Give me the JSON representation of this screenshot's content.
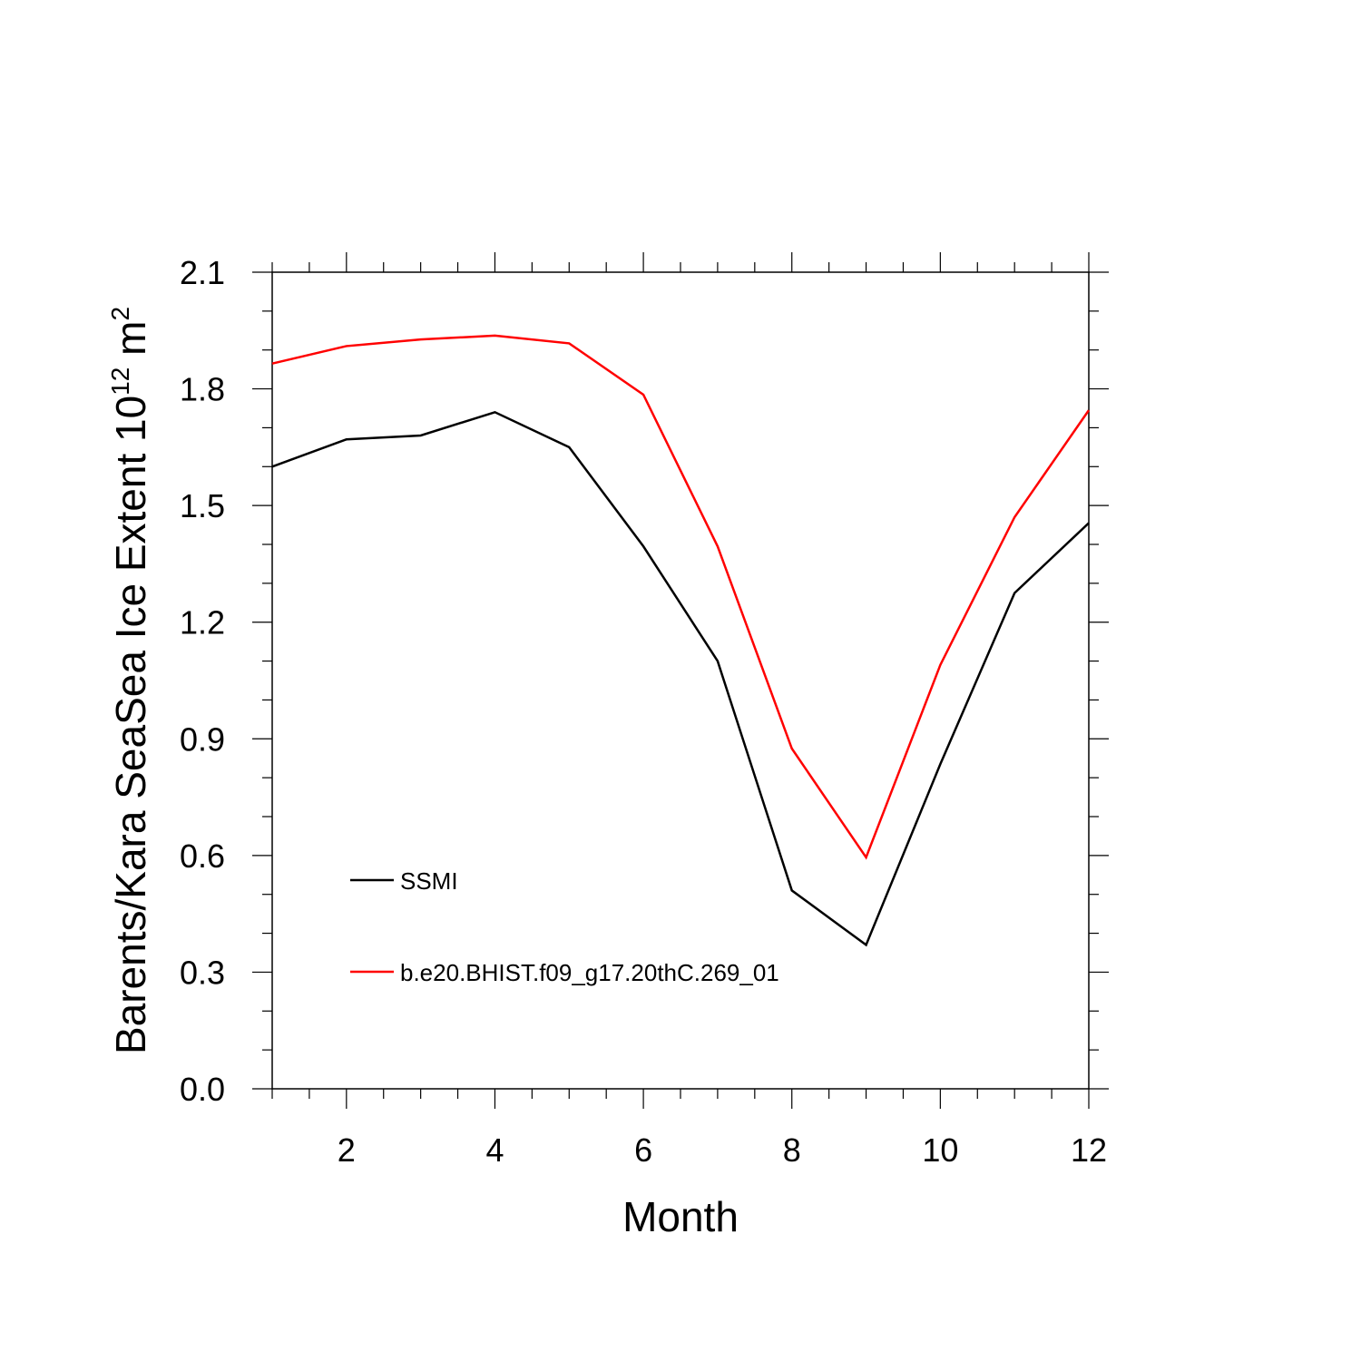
{
  "chart_data": {
    "type": "line",
    "xlabel": "Month",
    "ylabel": {
      "text": "Barents/Kara SeaSea Ice Extent 10",
      "exponent": "12",
      "unit": " m",
      "unit_exponent": "2"
    },
    "xlim": [
      1,
      12
    ],
    "ylim": [
      0.0,
      2.1
    ],
    "x_ticks": [
      2,
      4,
      6,
      8,
      10,
      12
    ],
    "x_tick_labels": [
      "2",
      "4",
      "6",
      "8",
      "10",
      "12"
    ],
    "y_ticks": [
      0.0,
      0.3,
      0.6,
      0.9,
      1.2,
      1.5,
      1.8,
      2.1
    ],
    "y_tick_labels": [
      "0.0",
      "0.3",
      "0.6",
      "0.9",
      "1.2",
      "1.5",
      "1.8",
      "2.1"
    ],
    "grid": false,
    "legend_placement": "lower-left",
    "x": [
      1,
      2,
      3,
      4,
      5,
      6,
      7,
      8,
      9,
      10,
      11,
      12
    ],
    "series": [
      {
        "name": "SSMI",
        "color": "#000000",
        "values": [
          1.6,
          1.67,
          1.68,
          1.74,
          1.65,
          1.395,
          1.1,
          0.51,
          0.37,
          0.835,
          1.275,
          1.455
        ]
      },
      {
        "name": "b.e20.BHIST.f09_g17.20thC.269_01",
        "color": "#ff0000",
        "values": [
          1.865,
          1.91,
          1.927,
          1.937,
          1.917,
          1.785,
          1.395,
          0.875,
          0.595,
          1.09,
          1.47,
          1.745
        ]
      }
    ]
  }
}
